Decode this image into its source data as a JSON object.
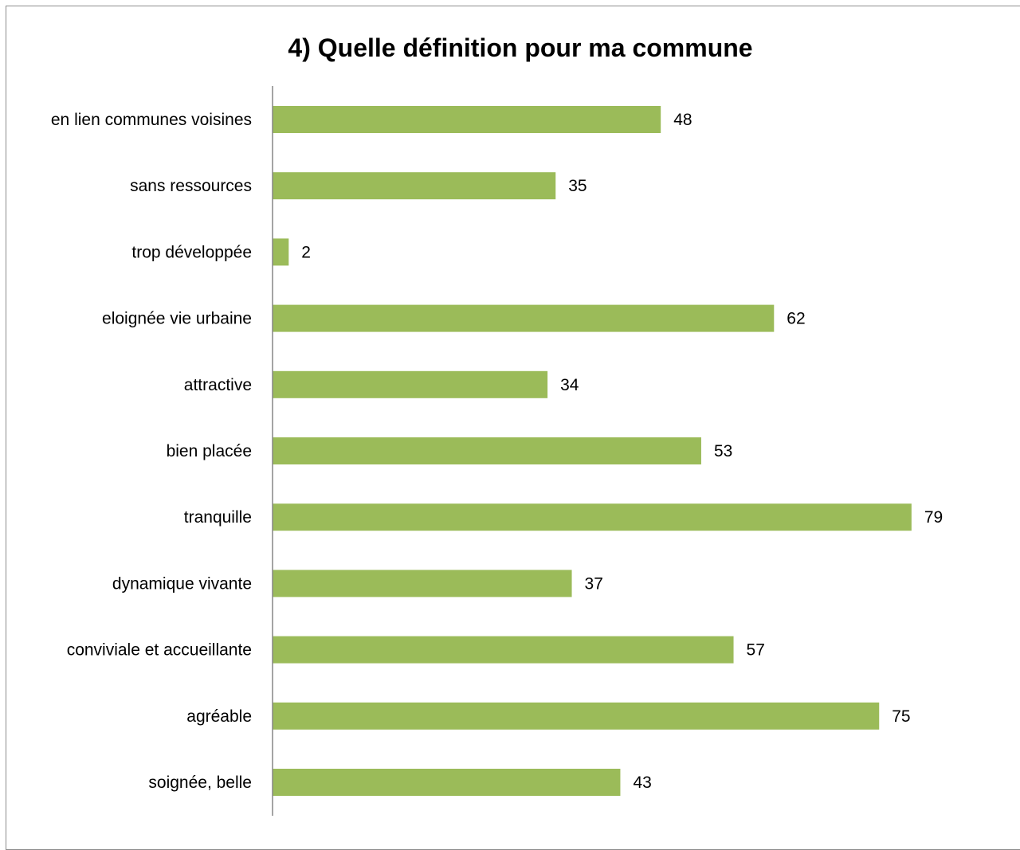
{
  "chart_data": {
    "type": "bar",
    "orientation": "horizontal",
    "title": "4) Quelle définition pour ma commune",
    "xlabel": "",
    "ylabel": "",
    "categories": [
      "en lien communes voisines",
      "sans ressources",
      "trop développée",
      "eloignée vie urbaine",
      "attractive",
      "bien placée",
      "tranquille",
      "dynamique vivante",
      "conviviale et accueillante",
      "agréable",
      "soignée, belle"
    ],
    "values": [
      48,
      35,
      2,
      62,
      34,
      53,
      79,
      37,
      57,
      75,
      43
    ],
    "data_labels": [
      "48",
      "35",
      "2",
      "62",
      "34",
      "53",
      "79",
      "37",
      "57",
      "75",
      "43"
    ],
    "xlim": [
      0,
      80
    ],
    "grid": false,
    "legend": "none",
    "bar_color": "#9bbb59"
  }
}
